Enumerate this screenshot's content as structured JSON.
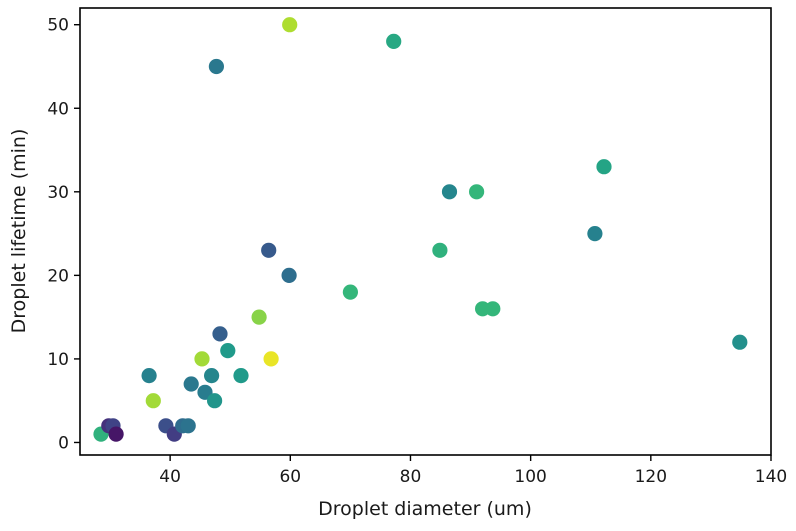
{
  "chart_data": {
    "type": "scatter",
    "title": "",
    "xlabel": "Droplet diameter (um)",
    "ylabel": "Droplet lifetime (min)",
    "xlim": [
      25,
      140
    ],
    "ylim": [
      -1.5,
      52
    ],
    "xticks": [
      40,
      60,
      80,
      100,
      120,
      140
    ],
    "yticks": [
      0,
      10,
      20,
      30,
      40,
      50
    ],
    "grid": false,
    "colormap": "viridis",
    "points": [
      {
        "x": 28.5,
        "y": 1,
        "c": 0.64
      },
      {
        "x": 29.8,
        "y": 2,
        "c": 0.14
      },
      {
        "x": 30.5,
        "y": 2,
        "c": 0.2
      },
      {
        "x": 31,
        "y": 1,
        "c": 0.06
      },
      {
        "x": 36.5,
        "y": 8,
        "c": 0.44
      },
      {
        "x": 37.2,
        "y": 5,
        "c": 0.86
      },
      {
        "x": 39.3,
        "y": 2,
        "c": 0.24
      },
      {
        "x": 40.7,
        "y": 1,
        "c": 0.18
      },
      {
        "x": 42.1,
        "y": 2,
        "c": 0.35
      },
      {
        "x": 43,
        "y": 2,
        "c": 0.38
      },
      {
        "x": 43.5,
        "y": 7,
        "c": 0.4
      },
      {
        "x": 45.3,
        "y": 10,
        "c": 0.86
      },
      {
        "x": 45.8,
        "y": 6,
        "c": 0.42
      },
      {
        "x": 46.9,
        "y": 8,
        "c": 0.46
      },
      {
        "x": 47.4,
        "y": 5,
        "c": 0.52
      },
      {
        "x": 47.7,
        "y": 45,
        "c": 0.4
      },
      {
        "x": 48.3,
        "y": 13,
        "c": 0.3
      },
      {
        "x": 49.6,
        "y": 11,
        "c": 0.54
      },
      {
        "x": 51.8,
        "y": 8,
        "c": 0.54
      },
      {
        "x": 54.8,
        "y": 15,
        "c": 0.82
      },
      {
        "x": 56.4,
        "y": 23,
        "c": 0.28
      },
      {
        "x": 56.8,
        "y": 10,
        "c": 0.97
      },
      {
        "x": 59.8,
        "y": 20,
        "c": 0.36
      },
      {
        "x": 59.9,
        "y": 50,
        "c": 0.88
      },
      {
        "x": 70,
        "y": 18,
        "c": 0.66
      },
      {
        "x": 77.2,
        "y": 48,
        "c": 0.6
      },
      {
        "x": 84.9,
        "y": 23,
        "c": 0.64
      },
      {
        "x": 86.5,
        "y": 30,
        "c": 0.46
      },
      {
        "x": 91,
        "y": 30,
        "c": 0.66
      },
      {
        "x": 92,
        "y": 16,
        "c": 0.66
      },
      {
        "x": 93.7,
        "y": 16,
        "c": 0.66
      },
      {
        "x": 110.7,
        "y": 25,
        "c": 0.44
      },
      {
        "x": 112.2,
        "y": 33,
        "c": 0.58
      },
      {
        "x": 134.8,
        "y": 12,
        "c": 0.5
      }
    ]
  }
}
